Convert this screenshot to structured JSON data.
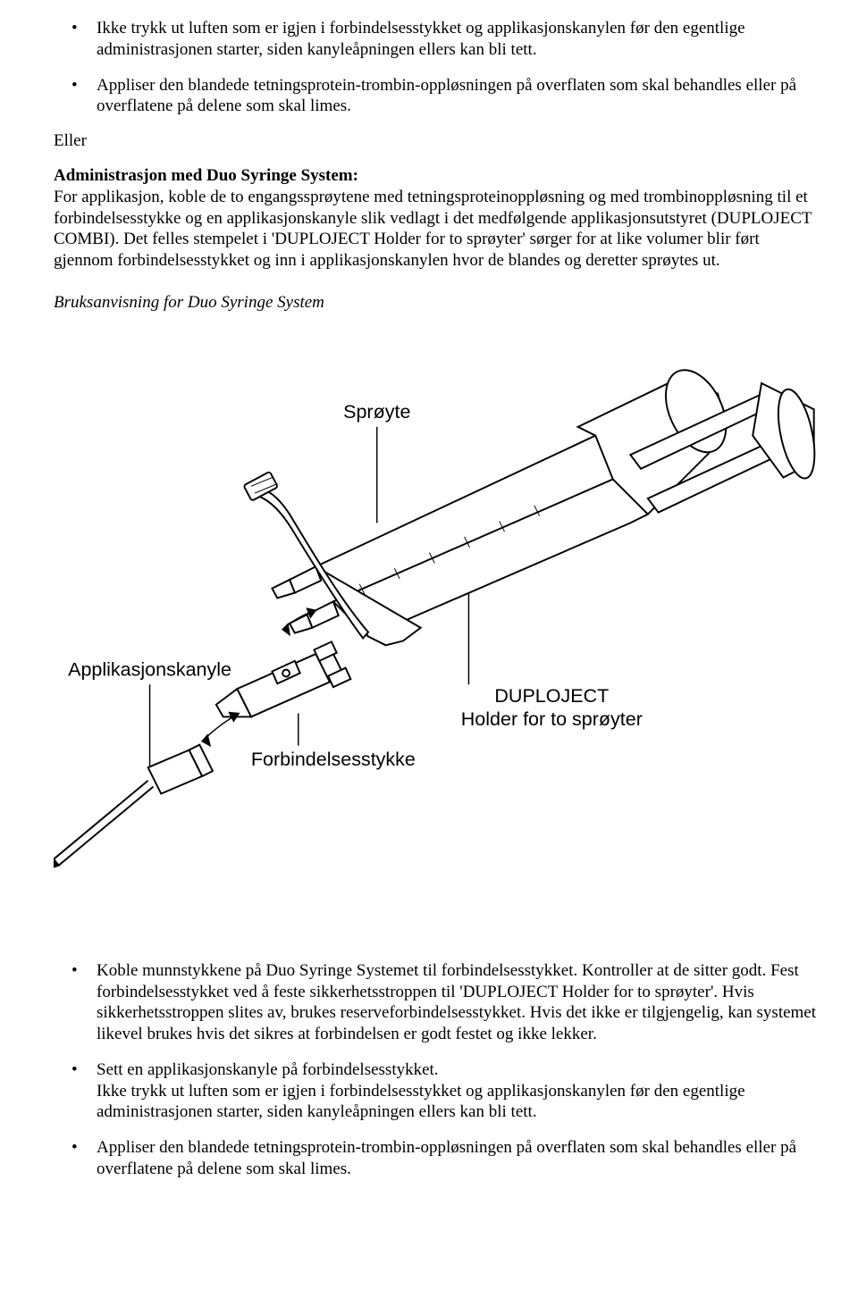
{
  "bullets_top": [
    "Ikke trykk ut luften som er igjen i forbindelsesstykket og applikasjonskanylen før den egentlige administrasjonen starter, siden kanyleåpningen ellers kan bli tett.",
    "Appliser den blandede tetningsprotein-trombin-oppløsningen på overflaten som skal behandles eller på overflatene på delene som skal limes."
  ],
  "eller": "Eller",
  "admin_heading": "Administrasjon med Duo Syringe System:",
  "admin_body": "For applikasjon, koble de to engangssprøytene med tetningsproteinoppløsning og med trombinoppløsning til et forbindelsesstykke og en applikasjonskanyle slik vedlagt i det medfølgende applikasjonsutstyret (DUPLOJECT COMBI). Det felles stempelet i 'DUPLOJECT Holder for to sprøyter' sørger for at like volumer blir ført gjennom forbindelsesstykket og inn i applikasjonskanylen hvor de blandes og deretter sprøytes ut.",
  "bruks_heading": "Bruksanvisning for Duo Syringe System",
  "diagram": {
    "labels": {
      "sproyte": "Sprøyte",
      "applikasjonskanyle": "Applikasjonskanyle",
      "forbindelsesstykke": "Forbindelsesstykke",
      "duploject_line1": "DUPLOJECT",
      "duploject_line2": "Holder for to sprøyter"
    },
    "font_family": "Arial, Helvetica, sans-serif",
    "label_fontsize": 22,
    "stroke": "#000000",
    "stroke_width": 2,
    "fill": "#ffffff"
  },
  "bullets_bottom": [
    "Koble munnstykkene på Duo Syringe Systemet til forbindelsesstykket. Kontroller at de sitter godt. Fest forbindelsesstykket ved å feste sikkerhetsstroppen til 'DUPLOJECT Holder for to sprøyter'. Hvis sikkerhetsstroppen slites av, brukes reserveforbindelsesstykket. Hvis det ikke er tilgjengelig, kan systemet likevel brukes hvis det sikres at forbindelsen er godt festet og ikke lekker.",
    "Sett en applikasjonskanyle på forbindelsesstykket.\nIkke trykk ut luften som er igjen i forbindelsesstykket og applikasjonskanylen før den egentlige administrasjonen starter, siden kanyleåpningen ellers kan bli tett.",
    "Appliser den blandede tetningsprotein-trombin-oppløsningen på overflaten som skal behandles eller på overflatene på delene som skal limes."
  ]
}
